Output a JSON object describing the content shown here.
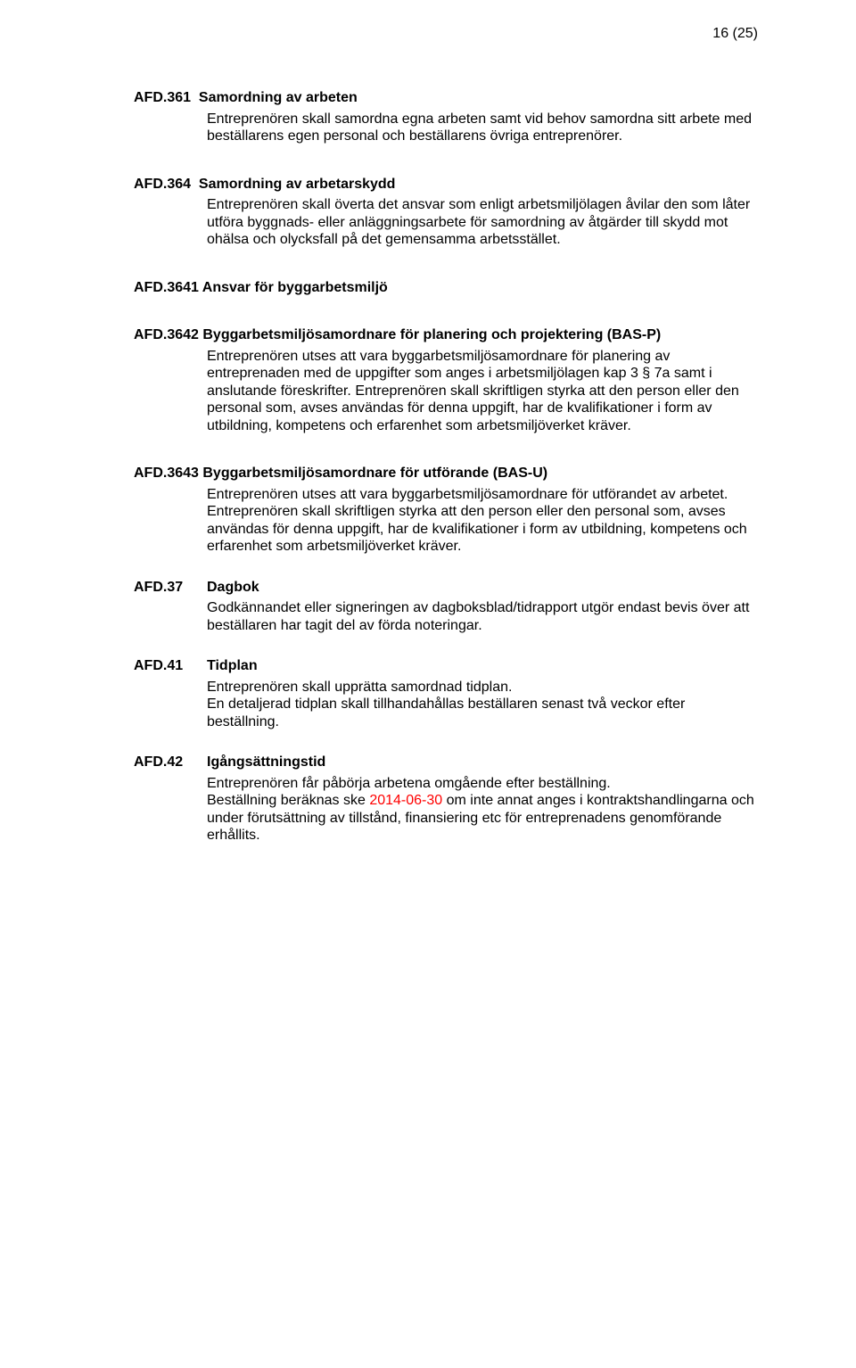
{
  "pageNumber": "16 (25)",
  "sections": [
    {
      "code": "AFD.361",
      "title": "Samordning av arbeten",
      "paras": [
        "Entreprenören skall samordna egna arbeten samt vid behov samordna sitt arbete med beställarens egen personal och beställarens övriga entreprenörer."
      ]
    },
    {
      "code": "AFD.364",
      "title": "Samordning av arbetarskydd",
      "paras": [
        "Entreprenören skall överta det ansvar som enligt arbetsmiljölagen åvilar den som låter utföra byggnads- eller anläggningsarbete för samordning av åtgärder till skydd mot ohälsa och olycksfall på det gemensamma arbetsstället."
      ]
    },
    {
      "code": "AFD.3641",
      "title": "Ansvar för byggarbetsmiljö",
      "paras": []
    },
    {
      "code": "AFD.3642",
      "title": "Byggarbetsmiljösamordnare för planering och projektering (BAS-P)",
      "paras": [
        "Entreprenören utses att vara byggarbetsmiljösamordnare för planering av entreprenaden med de uppgifter som anges i arbetsmiljölagen kap 3 § 7a samt i anslutande föreskrifter. Entreprenören skall skriftligen styrka att den person eller den personal som, avses användas för denna uppgift, har de kvalifikationer i form av utbildning, kompetens och erfarenhet som arbetsmiljöverket kräver."
      ]
    },
    {
      "code": "AFD.3643",
      "title": "Byggarbetsmiljösamordnare för utförande (BAS-U)",
      "paras": [
        "Entreprenören utses att vara byggarbetsmiljösamordnare för utförandet av arbetet. Entreprenören skall skriftligen styrka att den person eller den personal som, avses användas för denna uppgift, har de kvalifikationer i form av utbildning, kompetens och erfarenhet som arbetsmiljöverket kräver."
      ]
    },
    {
      "code": "AFD.37",
      "title": "Dagbok",
      "paras": [
        "Godkännandet eller signeringen av dagboksblad/tidrapport utgör endast bevis över att beställaren har tagit del av förda noteringar."
      ]
    },
    {
      "code": "AFD.41",
      "title": "Tidplan",
      "paras": [
        "Entreprenören skall upprätta samordnad tidplan.",
        "En detaljerad tidplan skall tillhandahållas beställaren senast två veckor efter beställning."
      ]
    },
    {
      "code": "AFD.42",
      "title": "Igångsättningstid",
      "paras": [],
      "richParas": [
        {
          "runs": [
            {
              "text": "Entreprenören får påbörja arbetena omgående efter beställning."
            }
          ]
        },
        {
          "runs": [
            {
              "text": "Beställning beräknas ske "
            },
            {
              "text": "2014-06-30",
              "color": "#ff0000"
            },
            {
              "text": " om inte annat anges i kontraktshandlingarna och under förutsättning av tillstånd, finansiering etc för entreprenadens genomförande erhållits."
            }
          ]
        }
      ]
    }
  ]
}
